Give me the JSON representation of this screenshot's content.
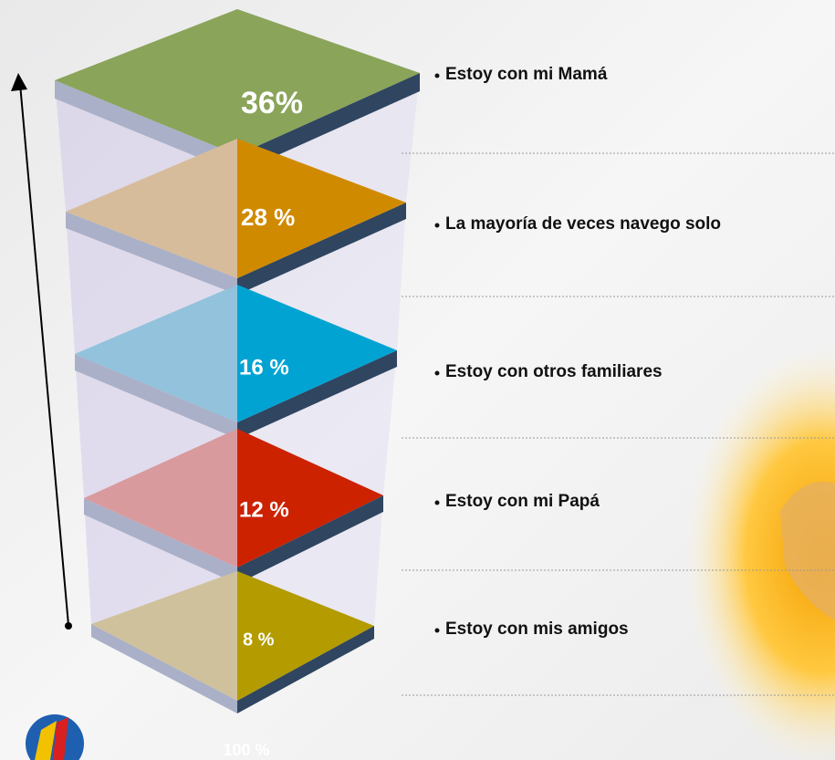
{
  "items": [
    {
      "value_label": "36%",
      "label": "Estoy con mi Mamá",
      "color": "#8aa45a",
      "light_color": "#8aa45a"
    },
    {
      "value_label": "28 %",
      "label": "La mayoría de veces navego solo",
      "color": "#d08a00",
      "light_color": "#d6bc9a"
    },
    {
      "value_label": "16 %",
      "label": "Estoy con otros familiares",
      "color": "#00a3d2",
      "light_color": "#92c2dc"
    },
    {
      "value_label": "12 %",
      "label": "Estoy con mi Papá",
      "color": "#cc2200",
      "light_color": "#d99a9e"
    },
    {
      "value_label": "8 %",
      "label": "Estoy con mis amigos",
      "color": "#b39b00",
      "light_color": "#cfc19c"
    }
  ],
  "footer": "100 %"
}
